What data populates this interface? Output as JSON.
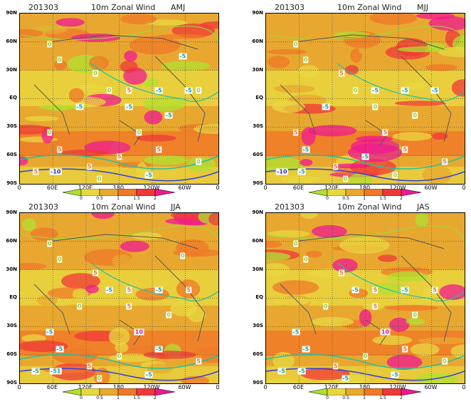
{
  "panels": [
    {
      "date": "201303",
      "title": "10m Zonal Wind",
      "season": "AMJ",
      "labels": [
        "0",
        "0",
        "0",
        "0",
        "5",
        "-5",
        "-5",
        "0",
        "5",
        "-5",
        "-5",
        "-5",
        "0",
        "5",
        "5",
        "5",
        "-10",
        "0",
        "5",
        "-5",
        "0",
        "-5",
        "0"
      ]
    },
    {
      "date": "201303",
      "title": "10m Zonal Wind",
      "season": "MJJ",
      "labels": [
        "0",
        "0",
        "5",
        "0",
        "-5",
        "-5",
        "0",
        "5",
        "-5",
        "-5",
        "-5",
        "0",
        "5",
        "5",
        "5",
        "-10",
        "-5",
        "0",
        "-5",
        "0",
        "5"
      ]
    },
    {
      "date": "201303",
      "title": "10m Zonal Wind",
      "season": "JJA",
      "labels": [
        "0",
        "0",
        "5",
        "-5",
        "5",
        "0",
        "5",
        "-5",
        "-5",
        "-5",
        "5",
        "0",
        "10",
        "-5",
        "5",
        "-5",
        "-51",
        "0",
        "0",
        "-5",
        "5",
        "0"
      ]
    },
    {
      "date": "201303",
      "title": "10m Zonal Wind",
      "season": "JAS",
      "labels": [
        "0",
        "0",
        "5",
        "-5",
        "5",
        "0",
        "5",
        "-5",
        "-5",
        "-5",
        "5",
        "0",
        "10",
        "5",
        "5",
        "-5",
        "-5",
        "-5",
        "0",
        "-5",
        "0"
      ]
    }
  ],
  "y_ticks": [
    "90N",
    "60N",
    "30N",
    "EQ",
    "30S",
    "60S",
    "90S"
  ],
  "x_ticks": [
    "0",
    "60E",
    "120E",
    "180",
    "120W",
    "60W",
    "0"
  ],
  "colorbar": {
    "labels": [
      "0",
      "0.5",
      "1",
      "1.5",
      "2"
    ],
    "colors": [
      "#b0e030",
      "#e8d840",
      "#e8a830",
      "#f07828",
      "#f03838",
      "#f01890"
    ]
  }
}
